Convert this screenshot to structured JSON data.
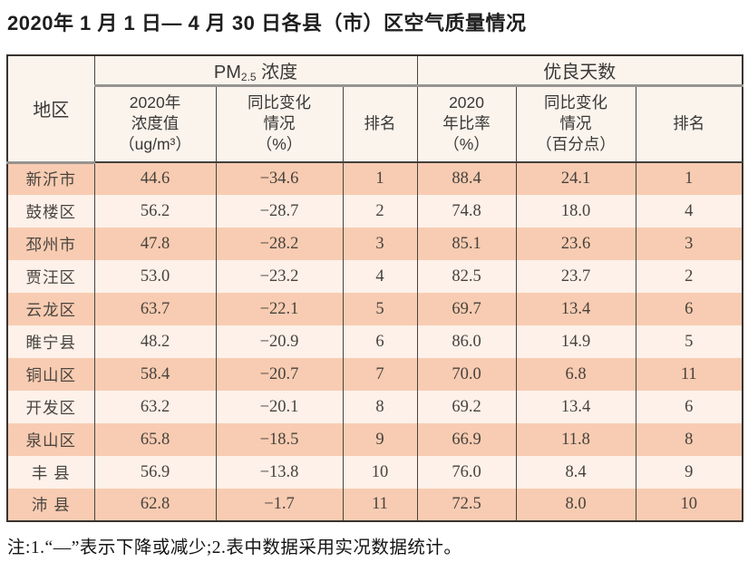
{
  "title": "2020年 1 月 1 日— 4 月 30 日各县（市）区空气质量情况",
  "table": {
    "header": {
      "region": "地区",
      "pm_group": {
        "prefix": "PM",
        "sub": "2.5",
        "suffix": " 浓度"
      },
      "good_days_group": "优良天数",
      "pm_value": {
        "line1": "2020年",
        "line2": "浓度值",
        "line3": "（ug/m³）"
      },
      "pm_change": {
        "line1": "同比变化",
        "line2": "情况",
        "line3": "（%）"
      },
      "pm_rank": "排名",
      "gd_ratio": {
        "line1": "2020",
        "line2": "年比率",
        "line3": "（%）"
      },
      "gd_change": {
        "line1": "同比变化",
        "line2": "情况",
        "line3": "（百分点）"
      },
      "gd_rank": "排名"
    },
    "rows": [
      {
        "region": "新沂市",
        "pm_value": "44.6",
        "pm_change": "−34.6",
        "pm_rank": "1",
        "gd_ratio": "88.4",
        "gd_change": "24.1",
        "gd_rank": "1"
      },
      {
        "region": "鼓楼区",
        "pm_value": "56.2",
        "pm_change": "−28.7",
        "pm_rank": "2",
        "gd_ratio": "74.8",
        "gd_change": "18.0",
        "gd_rank": "4"
      },
      {
        "region": "邳州市",
        "pm_value": "47.8",
        "pm_change": "−28.2",
        "pm_rank": "3",
        "gd_ratio": "85.1",
        "gd_change": "23.6",
        "gd_rank": "3"
      },
      {
        "region": "贾汪区",
        "pm_value": "53.0",
        "pm_change": "−23.2",
        "pm_rank": "4",
        "gd_ratio": "82.5",
        "gd_change": "23.7",
        "gd_rank": "2"
      },
      {
        "region": "云龙区",
        "pm_value": "63.7",
        "pm_change": "−22.1",
        "pm_rank": "5",
        "gd_ratio": "69.7",
        "gd_change": "13.4",
        "gd_rank": "6"
      },
      {
        "region": "睢宁县",
        "pm_value": "48.2",
        "pm_change": "−20.9",
        "pm_rank": "6",
        "gd_ratio": "86.0",
        "gd_change": "14.9",
        "gd_rank": "5"
      },
      {
        "region": "铜山区",
        "pm_value": "58.4",
        "pm_change": "−20.7",
        "pm_rank": "7",
        "gd_ratio": "70.0",
        "gd_change": "6.8",
        "gd_rank": "11"
      },
      {
        "region": "开发区",
        "pm_value": "63.2",
        "pm_change": "−20.1",
        "pm_rank": "8",
        "gd_ratio": "69.2",
        "gd_change": "13.4",
        "gd_rank": "6"
      },
      {
        "region": "泉山区",
        "pm_value": "65.8",
        "pm_change": "−18.5",
        "pm_rank": "9",
        "gd_ratio": "66.9",
        "gd_change": "11.8",
        "gd_rank": "8"
      },
      {
        "region": "丰 县",
        "pm_value": "56.9",
        "pm_change": "−13.8",
        "pm_rank": "10",
        "gd_ratio": "76.0",
        "gd_change": "8.4",
        "gd_rank": "9"
      },
      {
        "region": "沛 县",
        "pm_value": "62.8",
        "pm_change": "−1.7",
        "pm_rank": "11",
        "gd_ratio": "72.5",
        "gd_change": "8.0",
        "gd_rank": "10"
      }
    ]
  },
  "note": "注:1.“—”表示下降或减少;2.表中数据采用实况数据统计。"
}
